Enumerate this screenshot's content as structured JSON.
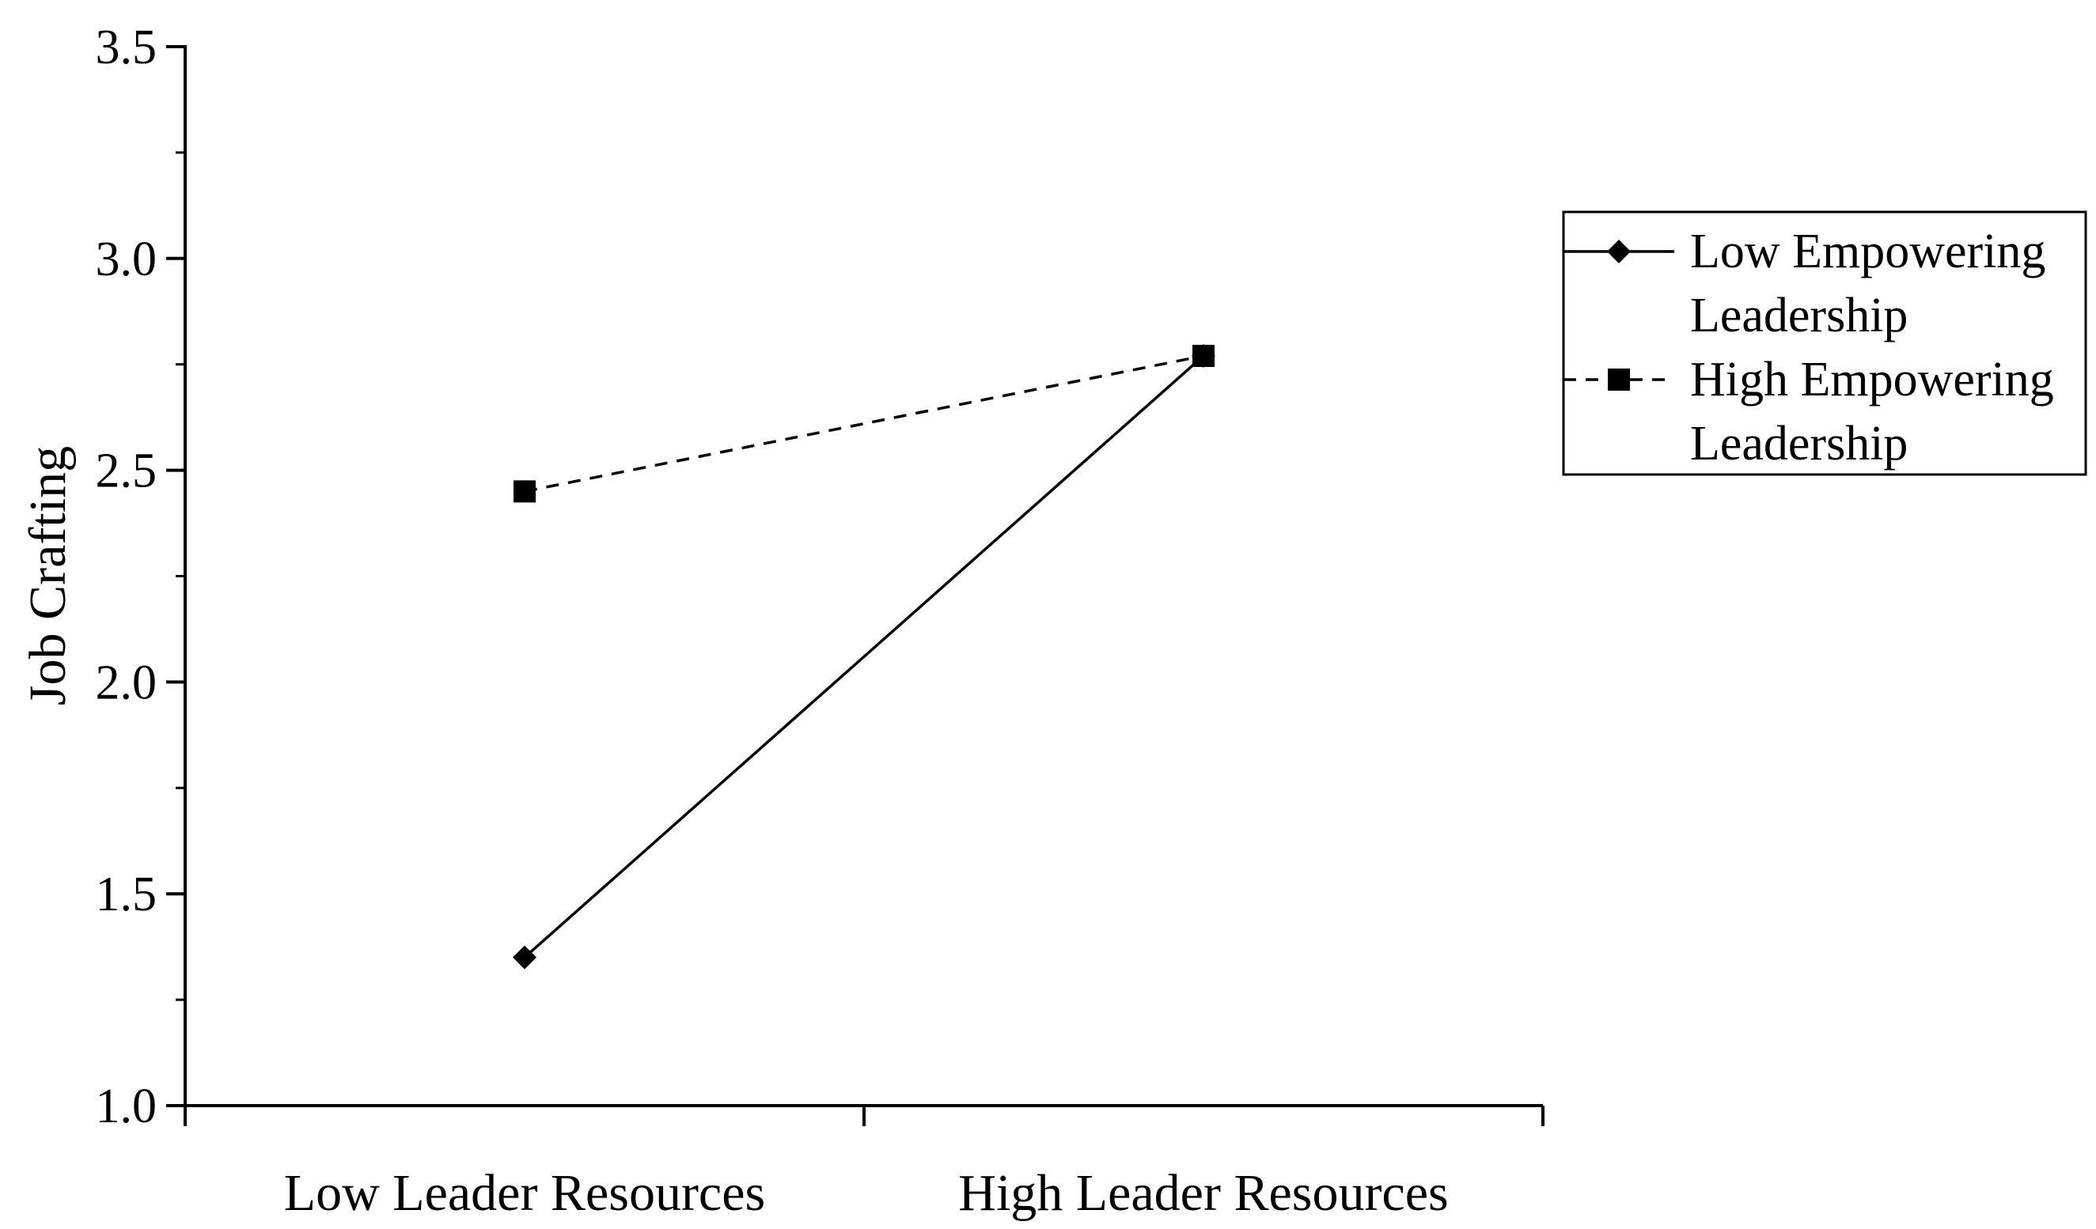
{
  "chart_data": {
    "type": "line",
    "title": "",
    "xlabel": "",
    "ylabel": "Job Crafting",
    "categories": [
      "Low Leader Resources",
      "High Leader Resources"
    ],
    "ylim": [
      1.0,
      3.5
    ],
    "yticks": [
      "1.0",
      "1.5",
      "2.0",
      "2.5",
      "3.0",
      "3.5"
    ],
    "grid": false,
    "legend_position": "right",
    "series": [
      {
        "name": "Low Empowering Leadership",
        "legend_lines": [
          "Low Empowering",
          "Leadership"
        ],
        "values": [
          1.35,
          2.77
        ],
        "marker": "diamond",
        "line_style": "solid",
        "color": "#000000"
      },
      {
        "name": "High Empowering Leadership",
        "legend_lines": [
          "High Empowering",
          "Leadership"
        ],
        "values": [
          2.45,
          2.77
        ],
        "marker": "square",
        "line_style": "dashed",
        "color": "#000000"
      }
    ]
  }
}
